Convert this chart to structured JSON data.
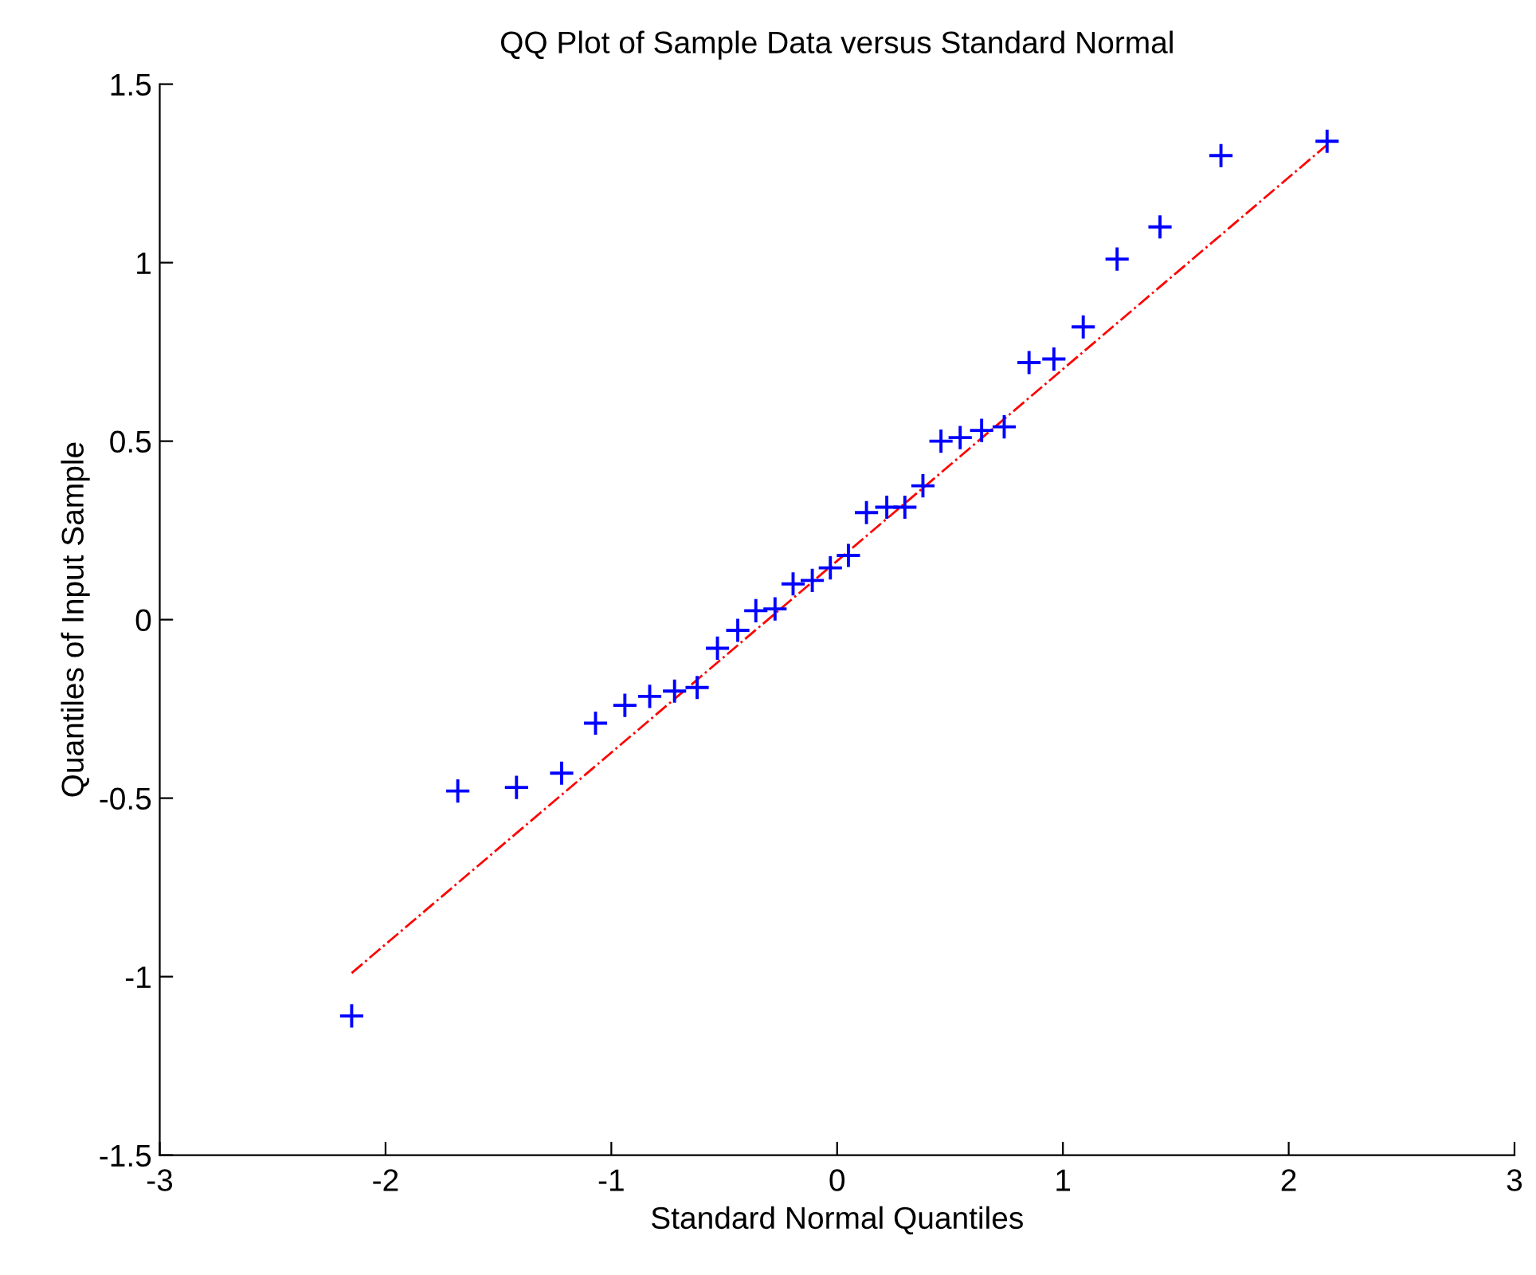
{
  "chart_data": {
    "type": "scatter",
    "title": "QQ Plot of Sample Data versus Standard Normal",
    "xlabel": "Standard Normal Quantiles",
    "ylabel": "Quantiles of Input Sample",
    "series": [
      {
        "color": "#0000ff",
        "marker": "cross",
        "x": [
          -2.15,
          -1.68,
          -1.42,
          -1.22,
          -1.07,
          -0.94,
          -0.83,
          -0.72,
          -0.62,
          -0.53,
          -0.44,
          -0.36,
          -0.275,
          -0.195,
          -0.11,
          -0.03,
          0.05,
          0.13,
          0.22,
          0.3,
          0.38,
          0.46,
          0.545,
          0.64,
          0.74,
          0.85,
          0.96,
          1.09,
          1.24,
          1.43,
          1.7,
          2.17
        ],
        "values": [
          -1.11,
          -0.48,
          -0.47,
          -0.43,
          -0.29,
          -0.24,
          -0.215,
          -0.2,
          -0.19,
          -0.08,
          -0.03,
          0.025,
          0.03,
          0.1,
          0.11,
          0.145,
          0.18,
          0.3,
          0.315,
          0.315,
          0.375,
          0.5,
          0.51,
          0.53,
          0.54,
          0.72,
          0.73,
          0.82,
          1.01,
          1.1,
          1.3,
          1.34
        ]
      },
      {
        "type": "line",
        "color": "#ff0000",
        "line_style": "dashdot",
        "marker": "none",
        "x": [
          -2.15,
          2.17
        ],
        "values": [
          -0.99,
          1.33
        ]
      }
    ],
    "xlim": [
      -3,
      3
    ],
    "ylim": [
      -1.5,
      1.5
    ],
    "xticks": [
      -3,
      -2,
      -1,
      0,
      1,
      2,
      3
    ],
    "yticks": [
      -1.5,
      -1,
      -0.5,
      0,
      0.5,
      1,
      1.5
    ],
    "grid": false,
    "legend": false
  }
}
